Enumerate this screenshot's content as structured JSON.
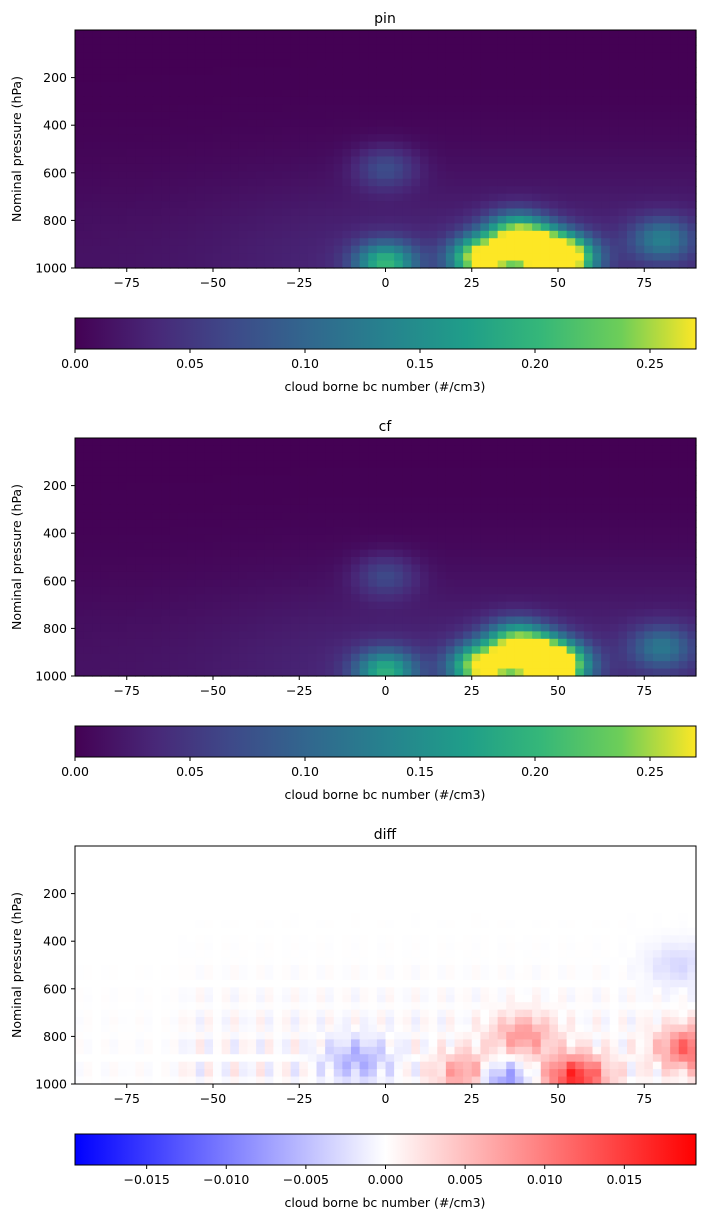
{
  "chart_data": [
    {
      "type": "heatmap",
      "title": "pin",
      "ylabel": "Nominal pressure (hPa)",
      "xlabel": "",
      "x_ticks": [
        -75,
        -50,
        -25,
        0,
        25,
        50,
        75
      ],
      "y_ticks": [
        200,
        400,
        600,
        800,
        1000
      ],
      "xlim": [
        -90,
        90
      ],
      "ylim": [
        1000,
        0
      ],
      "colormap": "viridis",
      "colorbar": {
        "label": "cloud borne bc number (#/cm3)",
        "range": [
          0,
          0.27
        ],
        "ticks": [
          "0.00",
          "0.05",
          "0.10",
          "0.15",
          "0.20",
          "0.25"
        ]
      },
      "hotspots": [
        {
          "x": 0,
          "y": 980,
          "value": 0.17
        },
        {
          "x": 28,
          "y": 960,
          "value": 0.26
        },
        {
          "x": 38,
          "y": 860,
          "value": 0.2
        },
        {
          "x": 52,
          "y": 960,
          "value": 0.26
        },
        {
          "x": 45,
          "y": 930,
          "value": 0.21
        },
        {
          "x": 80,
          "y": 880,
          "value": 0.1
        },
        {
          "x": 0,
          "y": 580,
          "value": 0.06
        }
      ]
    },
    {
      "type": "heatmap",
      "title": "cf",
      "ylabel": "Nominal pressure (hPa)",
      "xlabel": "",
      "x_ticks": [
        -75,
        -50,
        -25,
        0,
        25,
        50,
        75
      ],
      "y_ticks": [
        200,
        400,
        600,
        800,
        1000
      ],
      "xlim": [
        -90,
        90
      ],
      "ylim": [
        1000,
        0
      ],
      "colormap": "viridis",
      "colorbar": {
        "label": "cloud borne bc number (#/cm3)",
        "range": [
          0,
          0.27
        ],
        "ticks": [
          "0.00",
          "0.05",
          "0.10",
          "0.15",
          "0.20",
          "0.25"
        ]
      },
      "hotspots": [
        {
          "x": 0,
          "y": 980,
          "value": 0.16
        },
        {
          "x": 28,
          "y": 960,
          "value": 0.25
        },
        {
          "x": 38,
          "y": 860,
          "value": 0.19
        },
        {
          "x": 50,
          "y": 960,
          "value": 0.24
        },
        {
          "x": 45,
          "y": 930,
          "value": 0.2
        },
        {
          "x": 80,
          "y": 880,
          "value": 0.09
        },
        {
          "x": 0,
          "y": 580,
          "value": 0.055
        }
      ]
    },
    {
      "type": "heatmap",
      "title": "diff",
      "ylabel": "Nominal pressure (hPa)",
      "xlabel": "",
      "x_ticks": [
        -75,
        -50,
        -25,
        0,
        25,
        50,
        75
      ],
      "y_ticks": [
        200,
        400,
        600,
        800,
        1000
      ],
      "xlim": [
        -90,
        90
      ],
      "ylim": [
        1000,
        0
      ],
      "colormap": "bwr",
      "colorbar": {
        "label": "cloud borne bc number (#/cm3)",
        "range": [
          -0.0195,
          0.0195
        ],
        "ticks": [
          "−0.015",
          "−0.010",
          "−0.005",
          "0.000",
          "0.005",
          "0.010",
          "0.015"
        ]
      },
      "hotspots": [
        {
          "x": 55,
          "y": 970,
          "value": 0.016
        },
        {
          "x": 25,
          "y": 960,
          "value": 0.012
        },
        {
          "x": 88,
          "y": 850,
          "value": 0.012
        },
        {
          "x": 32,
          "y": 980,
          "value": -0.012
        },
        {
          "x": -8,
          "y": 900,
          "value": -0.006
        },
        {
          "x": 85,
          "y": 500,
          "value": -0.003
        },
        {
          "x": 40,
          "y": 800,
          "value": 0.008
        }
      ]
    }
  ]
}
